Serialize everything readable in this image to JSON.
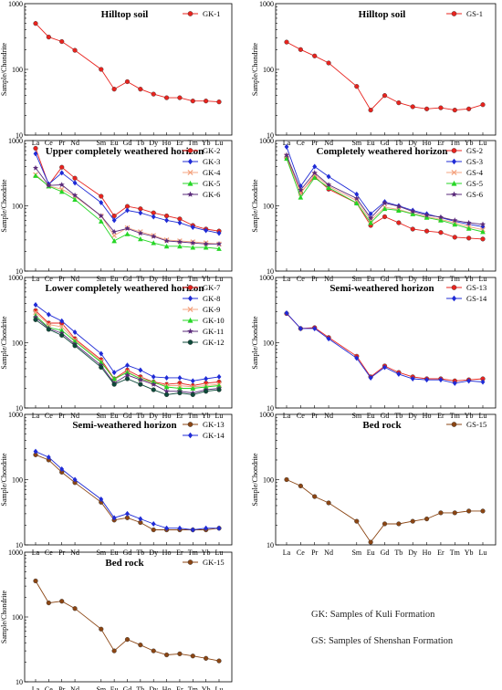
{
  "elements": [
    "La",
    "Ce",
    "Pr",
    "Nd",
    "Sm",
    "Eu",
    "Gd",
    "Tb",
    "Dy",
    "Ho",
    "Er",
    "Tm",
    "Yb",
    "Lu"
  ],
  "element_slots": [
    0,
    1,
    2,
    3,
    5,
    6,
    7,
    8,
    9,
    10,
    11,
    12,
    13,
    14
  ],
  "ylabel": "Sample/Chondrite",
  "notes": {
    "gk": "GK: Samples of Kuli Formation",
    "gs": "GS: Samples of Shenshan Formation"
  },
  "chart_data": [
    {
      "type": "line",
      "title": "Hilltop soil",
      "ylim": [
        10,
        1000
      ],
      "yscale": "log",
      "yticks": [
        10,
        100,
        1000
      ],
      "legend_position": "top-right",
      "series": [
        {
          "name": "GK-1",
          "color": "#e8231e",
          "marker": "circle",
          "values": [
            500,
            310,
            265,
            195,
            100,
            50,
            65,
            50,
            42,
            37,
            37,
            33,
            33,
            32
          ]
        }
      ]
    },
    {
      "type": "line",
      "title": "Hilltop soil",
      "ylim": [
        10,
        1000
      ],
      "yscale": "log",
      "yticks": [
        10,
        100,
        1000
      ],
      "legend_position": "top-right",
      "series": [
        {
          "name": "GS-1",
          "color": "#e8231e",
          "marker": "circle",
          "values": [
            260,
            200,
            160,
            125,
            55,
            24,
            40,
            31,
            27,
            25,
            26,
            24,
            25,
            29
          ]
        }
      ]
    },
    {
      "type": "line",
      "title": "Upper completely weathered horizon",
      "ylim": [
        10,
        1000
      ],
      "yscale": "log",
      "yticks": [
        10,
        100,
        1000
      ],
      "legend_position": "top-right",
      "series": [
        {
          "name": "GK-2",
          "color": "#e8231e",
          "marker": "circle",
          "values": [
            760,
            210,
            390,
            265,
            140,
            70,
            98,
            90,
            78,
            70,
            63,
            50,
            44,
            41
          ]
        },
        {
          "name": "GK-3",
          "color": "#1f2bd6",
          "marker": "diamond",
          "values": [
            630,
            215,
            320,
            225,
            112,
            60,
            85,
            78,
            68,
            60,
            55,
            47,
            42,
            38
          ]
        },
        {
          "name": "GK-4",
          "color": "#f4a582",
          "marker": "x",
          "values": [
            300,
            200,
            180,
            140,
            70,
            35,
            46,
            40,
            35,
            30,
            29,
            28,
            27,
            26
          ]
        },
        {
          "name": "GK-5",
          "color": "#25d625",
          "marker": "triangle",
          "values": [
            290,
            200,
            165,
            125,
            58,
            29,
            37,
            31,
            27,
            24,
            24,
            23,
            23,
            22
          ]
        },
        {
          "name": "GK-6",
          "color": "#5a2a7a",
          "marker": "star",
          "values": [
            380,
            205,
            210,
            145,
            70,
            40,
            45,
            38,
            34,
            29,
            28,
            27,
            26,
            26
          ]
        }
      ]
    },
    {
      "type": "line",
      "title": "Completely weathered horizon",
      "ylim": [
        10,
        1000
      ],
      "yscale": "log",
      "yticks": [
        10,
        100,
        1000
      ],
      "legend_position": "top-right",
      "series": [
        {
          "name": "GS-2",
          "color": "#e8231e",
          "marker": "circle",
          "values": [
            550,
            160,
            280,
            180,
            110,
            50,
            68,
            55,
            44,
            41,
            39,
            33,
            32,
            31
          ]
        },
        {
          "name": "GS-3",
          "color": "#1f2bd6",
          "marker": "diamond",
          "values": [
            800,
            200,
            400,
            280,
            150,
            75,
            115,
            100,
            85,
            75,
            66,
            58,
            52,
            48
          ]
        },
        {
          "name": "GS-4",
          "color": "#f4a582",
          "marker": "x",
          "values": [
            580,
            155,
            300,
            200,
            120,
            60,
            95,
            88,
            76,
            68,
            62,
            55,
            48,
            43
          ]
        },
        {
          "name": "GS-5",
          "color": "#25d625",
          "marker": "triangle",
          "values": [
            530,
            135,
            270,
            190,
            110,
            55,
            90,
            85,
            75,
            66,
            60,
            52,
            45,
            40
          ]
        },
        {
          "name": "GS-6",
          "color": "#5a2a7a",
          "marker": "star",
          "values": [
            600,
            175,
            320,
            210,
            130,
            65,
            110,
            98,
            82,
            72,
            67,
            60,
            55,
            52
          ]
        }
      ]
    },
    {
      "type": "line",
      "title": "Lower completely weathered horizon",
      "ylim": [
        10,
        1000
      ],
      "yscale": "log",
      "yticks": [
        10,
        100,
        1000
      ],
      "legend_position": "top-right",
      "series": [
        {
          "name": "GK-7",
          "color": "#e8231e",
          "marker": "circle",
          "values": [
            310,
            200,
            200,
            115,
            55,
            28,
            38,
            30,
            25,
            23,
            24,
            22,
            24,
            25
          ]
        },
        {
          "name": "GK-8",
          "color": "#1f2bd6",
          "marker": "diamond",
          "values": [
            380,
            270,
            215,
            145,
            68,
            35,
            45,
            38,
            30,
            29,
            29,
            26,
            28,
            30
          ]
        },
        {
          "name": "GK-9",
          "color": "#f4a582",
          "marker": "x",
          "values": [
            290,
            190,
            175,
            110,
            52,
            27,
            36,
            28,
            24,
            22,
            22,
            21,
            22,
            23
          ]
        },
        {
          "name": "GK-10",
          "color": "#25d625",
          "marker": "triangle",
          "values": [
            260,
            170,
            155,
            105,
            50,
            28,
            35,
            28,
            25,
            21,
            20,
            20,
            21,
            22
          ]
        },
        {
          "name": "GK-11",
          "color": "#5a2a7a",
          "marker": "star",
          "values": [
            245,
            165,
            140,
            95,
            45,
            24,
            32,
            27,
            23,
            18,
            18,
            17,
            19,
            20
          ]
        },
        {
          "name": "GK-12",
          "color": "#0d4a3a",
          "marker": "circle",
          "values": [
            225,
            160,
            130,
            90,
            42,
            23,
            28,
            23,
            19,
            16,
            17,
            16,
            18,
            19
          ]
        }
      ]
    },
    {
      "type": "line",
      "title": "Semi-weathered horizon",
      "ylim": [
        10,
        1000
      ],
      "yscale": "log",
      "yticks": [
        10,
        100,
        1000
      ],
      "legend_position": "top-right",
      "series": [
        {
          "name": "GS-13",
          "color": "#e8231e",
          "marker": "circle",
          "values": [
            280,
            165,
            170,
            120,
            62,
            30,
            44,
            35,
            30,
            28,
            28,
            26,
            27,
            28
          ]
        },
        {
          "name": "GS-14",
          "color": "#1f2bd6",
          "marker": "diamond",
          "values": [
            285,
            165,
            165,
            115,
            58,
            29,
            42,
            33,
            28,
            27,
            27,
            24,
            26,
            25
          ]
        }
      ]
    },
    {
      "type": "line",
      "title": "Semi-weathered horizon",
      "ylim": [
        10,
        1000
      ],
      "yscale": "log",
      "yticks": [
        10,
        100,
        1000
      ],
      "legend_position": "top-right",
      "series": [
        {
          "name": "GK-13",
          "color": "#8b4513",
          "marker": "circle",
          "values": [
            240,
            200,
            130,
            90,
            45,
            24,
            26,
            22,
            17,
            17,
            17,
            17,
            17,
            18
          ]
        },
        {
          "name": "GK-14",
          "color": "#1f2bd6",
          "marker": "diamond",
          "values": [
            270,
            220,
            145,
            100,
            50,
            26,
            30,
            25,
            21,
            18,
            18,
            17,
            18,
            18
          ]
        }
      ]
    },
    {
      "type": "line",
      "title": "Bed rock",
      "ylim": [
        10,
        1000
      ],
      "yscale": "log",
      "yticks": [
        10,
        100,
        1000
      ],
      "legend_position": "top-right",
      "series": [
        {
          "name": "GS-15",
          "color": "#8b4513",
          "marker": "circle",
          "values": [
            100,
            80,
            55,
            44,
            23,
            11,
            21,
            21,
            23,
            25,
            31,
            31,
            33,
            33
          ]
        }
      ]
    },
    {
      "type": "line",
      "title": "Bed rock",
      "ylim": [
        10,
        1000
      ],
      "yscale": "log",
      "yticks": [
        10,
        100,
        1000
      ],
      "legend_position": "top-right",
      "series": [
        {
          "name": "GK-15",
          "color": "#8b4513",
          "marker": "circle",
          "values": [
            360,
            165,
            175,
            135,
            65,
            30,
            45,
            37,
            30,
            26,
            27,
            25,
            23,
            21
          ]
        }
      ]
    }
  ]
}
